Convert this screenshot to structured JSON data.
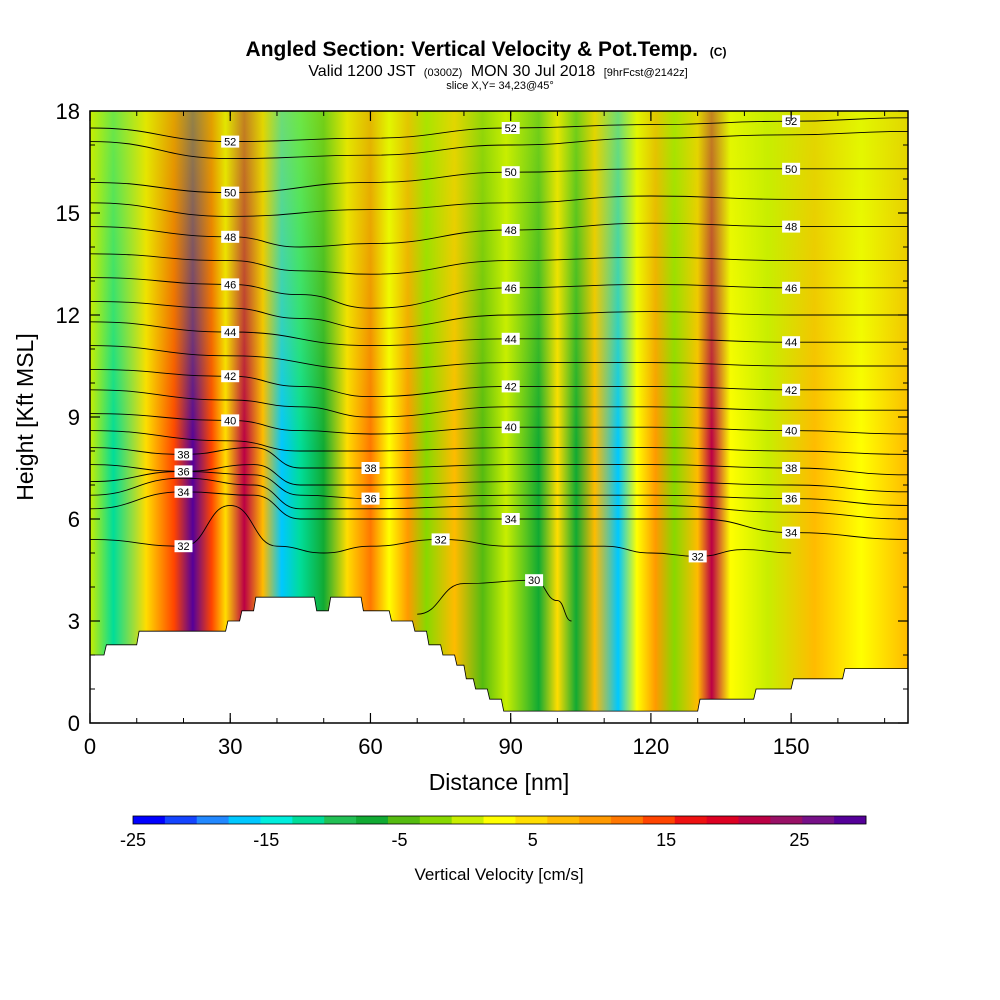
{
  "chart_data": {
    "type": "heatmap",
    "title": "Angled Section: Vertical Velocity & Pot.Temp.",
    "title_units": "(C)",
    "subtitle": {
      "valid_prefix": "Valid 1200 JST",
      "utc": "(0300Z)",
      "date": "MON 30 Jul 2018",
      "forecast": "[9hrFcst@2142z]"
    },
    "slice_label": "slice X,Y= 34,23@45°",
    "xlabel": "Distance [nm]",
    "ylabel": "Height [Kft MSL]",
    "xlim": [
      0,
      175
    ],
    "ylim": [
      0,
      18
    ],
    "x_ticks": [
      "0",
      "30",
      "60",
      "90",
      "120",
      "150"
    ],
    "y_ticks": [
      "0",
      "3",
      "6",
      "9",
      "12",
      "15",
      "18"
    ],
    "colorbar": {
      "label": "Vertical Velocity [cm/s]",
      "tick_labels": [
        "-25",
        "-15",
        "-5",
        "5",
        "15",
        "25"
      ],
      "colors": [
        "#0000ff",
        "#1444ff",
        "#2288ff",
        "#00c8ff",
        "#00eedd",
        "#00dd99",
        "#22c055",
        "#11aa33",
        "#55bb11",
        "#88d800",
        "#c8ee00",
        "#ffff00",
        "#ffdd00",
        "#ffbb00",
        "#ff9900",
        "#ff7700",
        "#ff4400",
        "#ee1111",
        "#dd0022",
        "#bb0044",
        "#991166",
        "#771188",
        "#550099"
      ]
    },
    "vertical_velocity_bands": [
      {
        "x": 0,
        "value": -2
      },
      {
        "x": 5,
        "value": -16
      },
      {
        "x": 12,
        "value": 2
      },
      {
        "x": 18,
        "value": 12
      },
      {
        "x": 22,
        "value": 28
      },
      {
        "x": 26,
        "value": 12
      },
      {
        "x": 29,
        "value": 2
      },
      {
        "x": 33,
        "value": 20
      },
      {
        "x": 37,
        "value": 4
      },
      {
        "x": 41,
        "value": -20
      },
      {
        "x": 45,
        "value": -16
      },
      {
        "x": 50,
        "value": -10
      },
      {
        "x": 55,
        "value": 2
      },
      {
        "x": 60,
        "value": 10
      },
      {
        "x": 64,
        "value": 0
      },
      {
        "x": 68,
        "value": 8
      },
      {
        "x": 72,
        "value": -6
      },
      {
        "x": 78,
        "value": 4
      },
      {
        "x": 84,
        "value": -8
      },
      {
        "x": 89,
        "value": -2
      },
      {
        "x": 96,
        "value": -10
      },
      {
        "x": 100,
        "value": 2
      },
      {
        "x": 104,
        "value": -10
      },
      {
        "x": 108,
        "value": 6
      },
      {
        "x": 113,
        "value": -20
      },
      {
        "x": 117,
        "value": 0
      },
      {
        "x": 121,
        "value": 8
      },
      {
        "x": 125,
        "value": -4
      },
      {
        "x": 130,
        "value": 4
      },
      {
        "x": 133,
        "value": 20
      },
      {
        "x": 137,
        "value": 0
      },
      {
        "x": 145,
        "value": -3
      },
      {
        "x": 155,
        "value": 6
      },
      {
        "x": 165,
        "value": -1
      },
      {
        "x": 175,
        "value": 4
      }
    ],
    "terrain": [
      {
        "x": 0,
        "height": 2.0
      },
      {
        "x": 3,
        "height": 2.0
      },
      {
        "x": 3.5,
        "height": 2.3
      },
      {
        "x": 10,
        "height": 2.3
      },
      {
        "x": 10.5,
        "height": 2.7
      },
      {
        "x": 29,
        "height": 2.7
      },
      {
        "x": 29.5,
        "height": 3.0
      },
      {
        "x": 32,
        "height": 3.0
      },
      {
        "x": 32.5,
        "height": 3.3
      },
      {
        "x": 35,
        "height": 3.3
      },
      {
        "x": 35.5,
        "height": 3.7
      },
      {
        "x": 48,
        "height": 3.7
      },
      {
        "x": 48.5,
        "height": 3.3
      },
      {
        "x": 51,
        "height": 3.3
      },
      {
        "x": 51.5,
        "height": 3.7
      },
      {
        "x": 58,
        "height": 3.7
      },
      {
        "x": 58.5,
        "height": 3.3
      },
      {
        "x": 64,
        "height": 3.3
      },
      {
        "x": 64.5,
        "height": 3.0
      },
      {
        "x": 69,
        "height": 3.0
      },
      {
        "x": 69.5,
        "height": 2.7
      },
      {
        "x": 72,
        "height": 2.7
      },
      {
        "x": 72.5,
        "height": 2.3
      },
      {
        "x": 75,
        "height": 2.3
      },
      {
        "x": 75.5,
        "height": 2.0
      },
      {
        "x": 78,
        "height": 2.0
      },
      {
        "x": 78.5,
        "height": 1.7
      },
      {
        "x": 80,
        "height": 1.7
      },
      {
        "x": 80.5,
        "height": 1.3
      },
      {
        "x": 82,
        "height": 1.3
      },
      {
        "x": 82.5,
        "height": 1.0
      },
      {
        "x": 85,
        "height": 1.0
      },
      {
        "x": 85.5,
        "height": 0.7
      },
      {
        "x": 88,
        "height": 0.7
      },
      {
        "x": 88.5,
        "height": 0.35
      },
      {
        "x": 130,
        "height": 0.35
      },
      {
        "x": 130.5,
        "height": 0.7
      },
      {
        "x": 142,
        "height": 0.7
      },
      {
        "x": 142.5,
        "height": 1.0
      },
      {
        "x": 150,
        "height": 1.0
      },
      {
        "x": 150.5,
        "height": 1.3
      },
      {
        "x": 161,
        "height": 1.3
      },
      {
        "x": 161.5,
        "height": 1.6
      },
      {
        "x": 175,
        "height": 1.6
      }
    ],
    "potential_temperature_contours": [
      {
        "value": 52,
        "label": "52",
        "points": [
          [
            0,
            17.5
          ],
          [
            30,
            17.1
          ],
          [
            60,
            17.2
          ],
          [
            90,
            17.5
          ],
          [
            120,
            17.6
          ],
          [
            150,
            17.7
          ],
          [
            175,
            17.8
          ]
        ]
      },
      {
        "value": 51,
        "points": [
          [
            0,
            17.1
          ],
          [
            30,
            16.6
          ],
          [
            60,
            16.7
          ],
          [
            90,
            17.0
          ],
          [
            120,
            17.2
          ],
          [
            150,
            17.3
          ],
          [
            175,
            17.4
          ]
        ]
      },
      {
        "value": 50,
        "label": "50",
        "points": [
          [
            0,
            15.9
          ],
          [
            30,
            15.6
          ],
          [
            60,
            15.9
          ],
          [
            90,
            16.2
          ],
          [
            120,
            16.3
          ],
          [
            150,
            16.3
          ],
          [
            175,
            16.3
          ]
        ]
      },
      {
        "value": 49,
        "points": [
          [
            0,
            15.3
          ],
          [
            30,
            14.9
          ],
          [
            60,
            15.1
          ],
          [
            90,
            15.3
          ],
          [
            120,
            15.5
          ],
          [
            150,
            15.4
          ],
          [
            175,
            15.4
          ]
        ]
      },
      {
        "value": 48,
        "label": "48",
        "points": [
          [
            0,
            14.6
          ],
          [
            30,
            14.3
          ],
          [
            45,
            14.0
          ],
          [
            60,
            14.1
          ],
          [
            90,
            14.5
          ],
          [
            120,
            14.7
          ],
          [
            150,
            14.6
          ],
          [
            175,
            14.6
          ]
        ]
      },
      {
        "value": 47,
        "points": [
          [
            0,
            13.8
          ],
          [
            30,
            13.6
          ],
          [
            45,
            13.3
          ],
          [
            60,
            13.2
          ],
          [
            90,
            13.6
          ],
          [
            120,
            13.7
          ],
          [
            150,
            13.6
          ],
          [
            175,
            13.6
          ]
        ]
      },
      {
        "value": 46,
        "label": "46",
        "points": [
          [
            0,
            13.1
          ],
          [
            30,
            12.9
          ],
          [
            45,
            12.6
          ],
          [
            60,
            12.2
          ],
          [
            90,
            12.8
          ],
          [
            120,
            12.9
          ],
          [
            150,
            12.8
          ],
          [
            175,
            12.8
          ]
        ]
      },
      {
        "value": 45,
        "points": [
          [
            0,
            12.4
          ],
          [
            30,
            12.2
          ],
          [
            45,
            11.9
          ],
          [
            60,
            11.6
          ],
          [
            90,
            12.0
          ],
          [
            120,
            12.1
          ],
          [
            150,
            12.0
          ],
          [
            175,
            12.0
          ]
        ]
      },
      {
        "value": 44,
        "label": "44",
        "points": [
          [
            0,
            11.8
          ],
          [
            30,
            11.5
          ],
          [
            60,
            11.1
          ],
          [
            90,
            11.3
          ],
          [
            120,
            11.3
          ],
          [
            150,
            11.2
          ],
          [
            175,
            11.2
          ]
        ]
      },
      {
        "value": 43,
        "points": [
          [
            0,
            11.1
          ],
          [
            30,
            10.8
          ],
          [
            60,
            10.4
          ],
          [
            90,
            10.6
          ],
          [
            120,
            10.6
          ],
          [
            150,
            10.5
          ],
          [
            175,
            10.5
          ]
        ]
      },
      {
        "value": 42,
        "label": "42",
        "points": [
          [
            0,
            10.4
          ],
          [
            30,
            10.2
          ],
          [
            45,
            9.9
          ],
          [
            60,
            9.6
          ],
          [
            90,
            9.9
          ],
          [
            120,
            9.9
          ],
          [
            150,
            9.8
          ],
          [
            175,
            9.8
          ]
        ]
      },
      {
        "value": 41,
        "points": [
          [
            0,
            9.8
          ],
          [
            30,
            9.5
          ],
          [
            45,
            9.3
          ],
          [
            60,
            9.0
          ],
          [
            90,
            9.3
          ],
          [
            120,
            9.3
          ],
          [
            150,
            9.2
          ],
          [
            175,
            9.2
          ]
        ]
      },
      {
        "value": 40,
        "label": "40",
        "points": [
          [
            0,
            9.1
          ],
          [
            30,
            8.9
          ],
          [
            45,
            8.6
          ],
          [
            60,
            8.5
          ],
          [
            90,
            8.7
          ],
          [
            120,
            8.7
          ],
          [
            150,
            8.6
          ],
          [
            175,
            8.5
          ]
        ]
      },
      {
        "value": 39,
        "points": [
          [
            0,
            8.6
          ],
          [
            30,
            8.3
          ],
          [
            45,
            8.0
          ],
          [
            60,
            8.0
          ],
          [
            90,
            8.1
          ],
          [
            120,
            8.1
          ],
          [
            150,
            8.0
          ],
          [
            175,
            7.9
          ]
        ]
      },
      {
        "value": 38,
        "label": "38",
        "points": [
          [
            0,
            8.1
          ],
          [
            20,
            7.9
          ],
          [
            35,
            8.1
          ],
          [
            45,
            7.5
          ],
          [
            60,
            7.5
          ],
          [
            90,
            7.6
          ],
          [
            120,
            7.6
          ],
          [
            150,
            7.5
          ],
          [
            175,
            7.3
          ]
        ]
      },
      {
        "value": 37,
        "points": [
          [
            0,
            7.6
          ],
          [
            20,
            7.4
          ],
          [
            35,
            7.6
          ],
          [
            45,
            7.0
          ],
          [
            60,
            7.0
          ],
          [
            90,
            7.1
          ],
          [
            120,
            7.1
          ],
          [
            150,
            7.0
          ],
          [
            175,
            6.8
          ]
        ]
      },
      {
        "value": 36,
        "label": "36",
        "points": [
          [
            0,
            7.1
          ],
          [
            20,
            7.4
          ],
          [
            35,
            7.3
          ],
          [
            45,
            6.7
          ],
          [
            60,
            6.6
          ],
          [
            90,
            6.7
          ],
          [
            120,
            6.7
          ],
          [
            150,
            6.6
          ],
          [
            175,
            6.4
          ]
        ]
      },
      {
        "value": 35,
        "points": [
          [
            0,
            6.7
          ],
          [
            20,
            7.2
          ],
          [
            35,
            7.0
          ],
          [
            45,
            6.3
          ],
          [
            60,
            6.3
          ],
          [
            90,
            6.4
          ],
          [
            120,
            6.4
          ],
          [
            150,
            6.2
          ],
          [
            175,
            6.0
          ]
        ]
      },
      {
        "value": 34,
        "label": "34",
        "points": [
          [
            0,
            6.3
          ],
          [
            20,
            6.8
          ],
          [
            35,
            6.7
          ],
          [
            45,
            6.0
          ],
          [
            60,
            6.0
          ],
          [
            90,
            6.0
          ],
          [
            110,
            6.0
          ],
          [
            130,
            6.0
          ],
          [
            150,
            5.6
          ],
          [
            175,
            5.4
          ]
        ]
      },
      {
        "value": 32,
        "label": "32",
        "points": [
          [
            0,
            5.4
          ],
          [
            20,
            5.2
          ],
          [
            30,
            6.4
          ],
          [
            40,
            5.2
          ],
          [
            50,
            5.0
          ],
          [
            60,
            5.2
          ],
          [
            75,
            5.4
          ],
          [
            90,
            5.2
          ],
          [
            110,
            5.2
          ],
          [
            120,
            5.0
          ],
          [
            130,
            4.9
          ],
          [
            140,
            5.1
          ],
          [
            150,
            5.0
          ]
        ]
      },
      {
        "value": 30,
        "label": "30",
        "points": [
          [
            70,
            3.2
          ],
          [
            80,
            4.1
          ],
          [
            95,
            4.2
          ],
          [
            100,
            3.6
          ],
          [
            103,
            3.0
          ]
        ]
      }
    ]
  }
}
